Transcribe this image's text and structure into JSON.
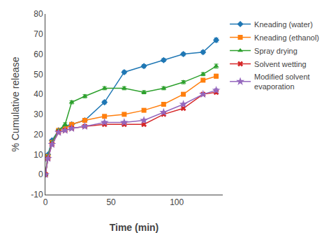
{
  "chart_data": {
    "type": "line",
    "xlabel": "Time (min)",
    "ylabel": "% Cumulative release",
    "x": [
      0,
      2,
      5,
      10,
      15,
      20,
      30,
      45,
      60,
      75,
      90,
      105,
      120,
      130
    ],
    "series": [
      {
        "name": "Kneading (water)",
        "marker": "diamond",
        "values": [
          0,
          10,
          17,
          22,
          24,
          25,
          27,
          36,
          51,
          54,
          57,
          60,
          61,
          67
        ],
        "yerr": [
          0.1,
          0.5,
          0.6,
          0.5,
          0.5,
          0.5,
          0.6,
          0.8,
          0.8,
          0.8,
          0.8,
          0.8,
          0.8,
          1.0
        ]
      },
      {
        "name": "Kneading (ethanol)",
        "marker": "square",
        "values": [
          0,
          9,
          16,
          22,
          23,
          25,
          27,
          29,
          30,
          32,
          35,
          40,
          47,
          49
        ],
        "yerr": [
          0.1,
          0.5,
          0.5,
          0.5,
          0.5,
          0.5,
          0.5,
          0.5,
          0.5,
          0.5,
          0.8,
          0.8,
          0.8,
          1.0
        ]
      },
      {
        "name": "Spray drying",
        "marker": "triangle-up",
        "values": [
          0,
          9,
          16,
          22,
          25,
          36,
          39,
          43,
          43,
          41,
          43,
          46,
          50,
          54
        ],
        "yerr": [
          0.1,
          0.5,
          0.5,
          0.5,
          0.8,
          0.8,
          0.8,
          0.8,
          0.8,
          0.8,
          0.8,
          0.8,
          0.8,
          1.0
        ]
      },
      {
        "name": "Solvent wetting",
        "marker": "x",
        "values": [
          0,
          8,
          15,
          21,
          22,
          23,
          24,
          25,
          25,
          25,
          30,
          33,
          40,
          41
        ],
        "yerr": [
          0.1,
          0.5,
          0.5,
          0.5,
          0.5,
          0.5,
          0.5,
          0.5,
          0.5,
          0.5,
          0.5,
          0.5,
          0.5,
          0.8
        ]
      },
      {
        "name": "Modified solvent\nevaporation",
        "marker": "star",
        "values": [
          0,
          8,
          15,
          21,
          22,
          23,
          24,
          26,
          26,
          27,
          31,
          35,
          40,
          42
        ],
        "yerr": [
          0.1,
          0.5,
          0.5,
          0.5,
          0.5,
          0.5,
          0.5,
          0.5,
          0.5,
          0.5,
          0.5,
          0.5,
          0.5,
          0.8
        ]
      }
    ],
    "xlim": [
      0,
      135
    ],
    "xticks": [
      0,
      50,
      100
    ],
    "ylim": [
      -10,
      80
    ],
    "yticks": [
      -10,
      0,
      10,
      20,
      30,
      40,
      50,
      60,
      70,
      80
    ],
    "grid": false,
    "legend": "right"
  }
}
